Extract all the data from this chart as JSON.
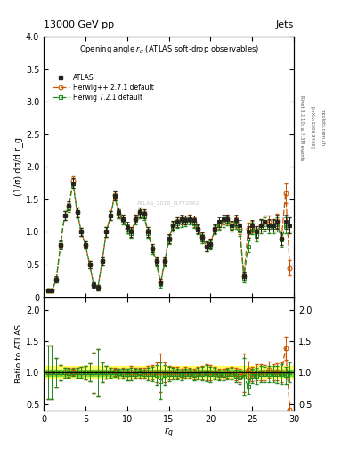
{
  "title_top": "13000 GeV pp",
  "title_right": "Jets",
  "plot_title": "Opening angle $r_g$ (ATLAS soft-drop observables)",
  "ylabel_main": "(1/σ) dσ/d r_g",
  "ylabel_ratio": "Ratio to ATLAS",
  "xlabel": "$r_g$",
  "watermark": "ATLAS_2019_I1772062",
  "rivet_text": "Rivet 3.1.10; ≥ 2.3M events",
  "arxiv_text": "[arXiv:1306.3436]",
  "inspire_text": "mcplots.cern.ch",
  "xlim": [
    0,
    30
  ],
  "ylim_main": [
    0,
    4
  ],
  "ylim_ratio": [
    0.4,
    2.2
  ],
  "atlas_x": [
    0.5,
    1.0,
    1.5,
    2.0,
    2.5,
    3.0,
    3.5,
    4.0,
    4.5,
    5.0,
    5.5,
    6.0,
    6.5,
    7.0,
    7.5,
    8.0,
    8.5,
    9.0,
    9.5,
    10.0,
    10.5,
    11.0,
    11.5,
    12.0,
    12.5,
    13.0,
    13.5,
    14.0,
    14.5,
    15.0,
    15.5,
    16.0,
    16.5,
    17.0,
    17.5,
    18.0,
    18.5,
    19.0,
    19.5,
    20.0,
    20.5,
    21.0,
    21.5,
    22.0,
    22.5,
    23.0,
    23.5,
    24.0,
    24.5,
    25.0,
    25.5,
    26.0,
    26.5,
    27.0,
    27.5,
    28.0,
    28.5,
    29.0,
    29.5
  ],
  "atlas_y": [
    0.1,
    0.1,
    0.27,
    0.8,
    1.25,
    1.4,
    1.75,
    1.3,
    1.0,
    0.8,
    0.5,
    0.18,
    0.15,
    0.55,
    1.0,
    1.25,
    1.55,
    1.3,
    1.2,
    1.08,
    1.0,
    1.2,
    1.3,
    1.28,
    1.0,
    0.75,
    0.55,
    0.23,
    0.55,
    0.9,
    1.1,
    1.15,
    1.2,
    1.18,
    1.2,
    1.18,
    1.05,
    0.92,
    0.78,
    0.82,
    1.05,
    1.15,
    1.2,
    1.2,
    1.1,
    1.18,
    1.1,
    0.32,
    1.0,
    1.1,
    1.0,
    1.1,
    1.15,
    1.1,
    1.1,
    1.15,
    0.9,
    1.15,
    1.1
  ],
  "atlas_yerr": [
    0.03,
    0.03,
    0.05,
    0.07,
    0.07,
    0.07,
    0.07,
    0.07,
    0.06,
    0.06,
    0.05,
    0.04,
    0.04,
    0.06,
    0.07,
    0.07,
    0.07,
    0.07,
    0.07,
    0.07,
    0.07,
    0.07,
    0.07,
    0.07,
    0.07,
    0.06,
    0.06,
    0.05,
    0.06,
    0.07,
    0.07,
    0.07,
    0.07,
    0.07,
    0.07,
    0.07,
    0.07,
    0.07,
    0.07,
    0.07,
    0.07,
    0.07,
    0.07,
    0.07,
    0.07,
    0.08,
    0.08,
    0.07,
    0.09,
    0.09,
    0.09,
    0.1,
    0.1,
    0.1,
    0.1,
    0.11,
    0.1,
    0.11,
    0.12
  ],
  "herwigpp_x": [
    0.5,
    1.0,
    1.5,
    2.0,
    2.5,
    3.0,
    3.5,
    4.0,
    4.5,
    5.0,
    5.5,
    6.0,
    6.5,
    7.0,
    7.5,
    8.0,
    8.5,
    9.0,
    9.5,
    10.0,
    10.5,
    11.0,
    11.5,
    12.0,
    12.5,
    13.0,
    13.5,
    14.0,
    14.5,
    15.0,
    15.5,
    16.0,
    16.5,
    17.0,
    17.5,
    18.0,
    18.5,
    19.0,
    19.5,
    20.0,
    20.5,
    21.0,
    21.5,
    22.0,
    22.5,
    23.0,
    23.5,
    24.0,
    24.5,
    25.0,
    25.5,
    26.0,
    26.5,
    27.0,
    27.5,
    28.0,
    28.5,
    29.0,
    29.5
  ],
  "herwigpp_y": [
    0.1,
    0.1,
    0.27,
    0.8,
    1.25,
    1.4,
    1.78,
    1.3,
    1.0,
    0.8,
    0.5,
    0.18,
    0.15,
    0.55,
    1.0,
    1.25,
    1.57,
    1.28,
    1.2,
    1.05,
    1.0,
    1.2,
    1.3,
    1.28,
    1.0,
    0.75,
    0.55,
    0.23,
    0.55,
    0.9,
    1.1,
    1.15,
    1.18,
    1.18,
    1.2,
    1.15,
    1.05,
    0.92,
    0.78,
    0.82,
    1.05,
    1.12,
    1.18,
    1.2,
    1.1,
    1.15,
    1.05,
    0.32,
    1.05,
    1.08,
    1.0,
    1.1,
    1.15,
    1.15,
    1.1,
    1.17,
    0.9,
    1.6,
    0.45
  ],
  "herwigpp_yerr": [
    0.03,
    0.03,
    0.04,
    0.06,
    0.07,
    0.07,
    0.07,
    0.07,
    0.06,
    0.06,
    0.05,
    0.04,
    0.04,
    0.06,
    0.07,
    0.07,
    0.07,
    0.07,
    0.07,
    0.07,
    0.07,
    0.07,
    0.07,
    0.07,
    0.07,
    0.06,
    0.06,
    0.05,
    0.06,
    0.07,
    0.07,
    0.07,
    0.07,
    0.07,
    0.07,
    0.07,
    0.07,
    0.07,
    0.07,
    0.07,
    0.07,
    0.07,
    0.07,
    0.07,
    0.07,
    0.08,
    0.08,
    0.07,
    0.09,
    0.09,
    0.09,
    0.1,
    0.1,
    0.1,
    0.1,
    0.11,
    0.1,
    0.15,
    0.12
  ],
  "herwig7_x": [
    0.5,
    1.0,
    1.5,
    2.0,
    2.5,
    3.0,
    3.5,
    4.0,
    4.5,
    5.0,
    5.5,
    6.0,
    6.5,
    7.0,
    7.5,
    8.0,
    8.5,
    9.0,
    9.5,
    10.0,
    10.5,
    11.0,
    11.5,
    12.0,
    12.5,
    13.0,
    13.5,
    14.0,
    14.5,
    15.0,
    15.5,
    16.0,
    16.5,
    17.0,
    17.5,
    18.0,
    18.5,
    19.0,
    19.5,
    20.0,
    20.5,
    21.0,
    21.5,
    22.0,
    22.5,
    23.0,
    23.5,
    24.0,
    24.5,
    25.0,
    25.5,
    26.0,
    26.5,
    27.0,
    27.5,
    28.0,
    28.5,
    29.0,
    29.5
  ],
  "herwig7_y": [
    0.1,
    0.1,
    0.27,
    0.8,
    1.25,
    1.38,
    1.75,
    1.3,
    1.0,
    0.8,
    0.5,
    0.18,
    0.15,
    0.55,
    1.0,
    1.25,
    1.55,
    1.28,
    1.18,
    1.05,
    0.98,
    1.18,
    1.28,
    1.25,
    0.98,
    0.73,
    0.53,
    0.2,
    0.53,
    0.88,
    1.08,
    1.13,
    1.15,
    1.16,
    1.18,
    1.13,
    1.03,
    0.9,
    0.77,
    0.8,
    1.03,
    1.1,
    1.15,
    1.17,
    1.08,
    1.12,
    1.02,
    0.3,
    0.78,
    1.05,
    0.95,
    1.08,
    1.12,
    1.08,
    1.08,
    1.12,
    0.88,
    1.1,
    1.1
  ],
  "herwig7_yerr": [
    0.03,
    0.03,
    0.04,
    0.06,
    0.07,
    0.07,
    0.07,
    0.07,
    0.06,
    0.06,
    0.05,
    0.04,
    0.04,
    0.06,
    0.07,
    0.07,
    0.07,
    0.07,
    0.07,
    0.07,
    0.07,
    0.07,
    0.07,
    0.07,
    0.07,
    0.06,
    0.06,
    0.05,
    0.06,
    0.07,
    0.07,
    0.07,
    0.07,
    0.07,
    0.07,
    0.07,
    0.07,
    0.07,
    0.07,
    0.07,
    0.07,
    0.07,
    0.07,
    0.07,
    0.07,
    0.08,
    0.08,
    0.07,
    0.09,
    0.09,
    0.09,
    0.1,
    0.1,
    0.1,
    0.1,
    0.11,
    0.1,
    0.12,
    0.12
  ],
  "atlas_color": "#222222",
  "herwigpp_color": "#cc5500",
  "herwig7_color": "#228B22",
  "band_yellow_lo": 0.9,
  "band_yellow_hi": 1.1,
  "band_green_lo": 0.95,
  "band_green_hi": 1.05,
  "yticks_main": [
    0.0,
    0.5,
    1.0,
    1.5,
    2.0,
    2.5,
    3.0,
    3.5,
    4.0
  ],
  "yticks_ratio": [
    0.5,
    1.0,
    1.5,
    2.0
  ],
  "xticks": [
    0,
    5,
    10,
    15,
    20,
    25,
    30
  ]
}
